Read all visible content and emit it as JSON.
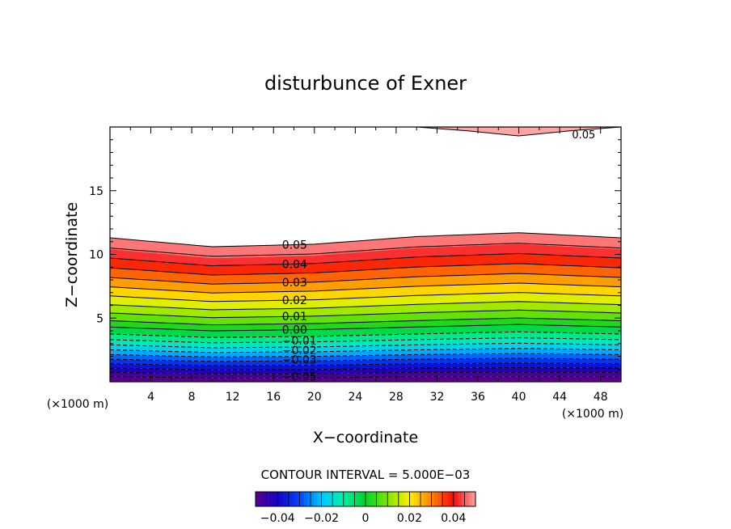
{
  "chart_data": {
    "type": "contour",
    "title": "disturbunce of Exner",
    "xlabel": "X−coordinate",
    "ylabel": "Z−coordinate",
    "x_unit": "(×1000 m)",
    "x_unit_right": "(×1000 m)",
    "xlim": [
      0,
      50
    ],
    "ylim": [
      0,
      20
    ],
    "x_ticks": [
      "4",
      "8",
      "12",
      "16",
      "20",
      "24",
      "28",
      "32",
      "36",
      "40",
      "44",
      "48"
    ],
    "y_ticks": [
      "5",
      "10",
      "15"
    ],
    "contour_interval_text": "CONTOUR INTERVAL = 5.000E−03",
    "colorbar": {
      "range": [
        -0.05,
        0.05
      ],
      "tick_labels": [
        "−0.04",
        "−0.02",
        "0",
        "0.02",
        "0.04"
      ]
    },
    "contour_labels": [
      "0.05",
      "0.04",
      "0.03",
      "0.02",
      "0.01",
      "0.00",
      "−0.01",
      "−0.02",
      "−0.03",
      "−0.05",
      "0.05"
    ],
    "levels": [
      -0.05,
      -0.045,
      -0.04,
      -0.035,
      -0.03,
      -0.025,
      -0.02,
      -0.015,
      -0.01,
      -0.005,
      0.0,
      0.005,
      0.01,
      0.015,
      0.02,
      0.025,
      0.03,
      0.035,
      0.04,
      0.045,
      0.05
    ],
    "level_heights_km_at_x": {
      "x": [
        0,
        10,
        20,
        30,
        40,
        50
      ],
      "z_of_level_0.05": [
        11.3,
        10.6,
        10.8,
        11.4,
        11.7,
        11.3
      ],
      "z_of_level_0.00": [
        4.3,
        4.0,
        4.1,
        4.3,
        4.5,
        4.3
      ],
      "z_of_level_-0.05": [
        0.4,
        0.3,
        0.3,
        0.4,
        0.4,
        0.4
      ]
    },
    "upper_region": {
      "level": 0.05,
      "boundary_z_km": [
        20.3,
        20.2,
        20.0,
        19.7,
        19.3,
        19.7,
        20.0
      ],
      "boundary_x_km": [
        20,
        25,
        30,
        35,
        40,
        45,
        50
      ]
    },
    "grid": false,
    "legend": "colorbar-bottom"
  }
}
